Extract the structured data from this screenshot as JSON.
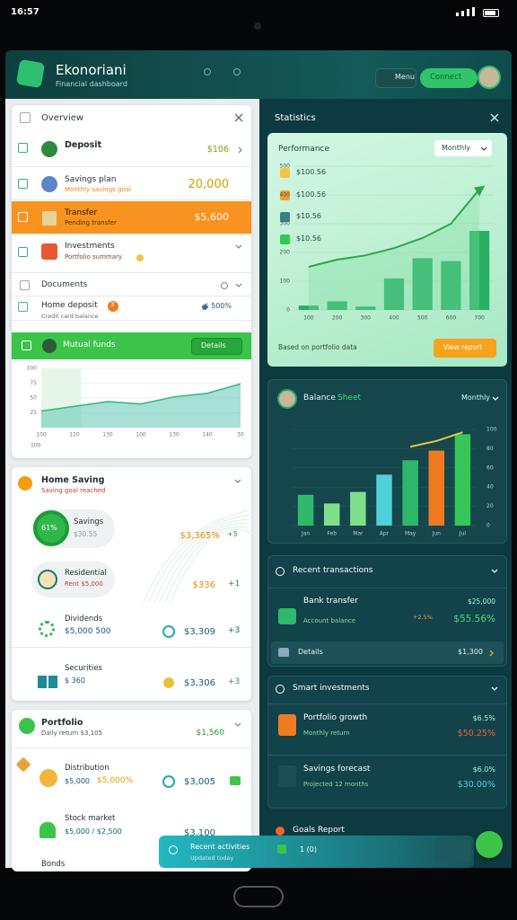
{
  "status_bar": {
    "time": "16:57"
  },
  "header": {
    "app_name": "Ekonoriani",
    "subtitle": "Financial dashboard",
    "menu_button": "Menu",
    "connect_button": "Connect"
  },
  "overview": {
    "title": "Overview",
    "items": [
      {
        "label": "Deposit",
        "value": "$106"
      },
      {
        "label": "Savings plan",
        "detail": "Monthly savings goal",
        "value": "20,000"
      },
      {
        "label": "Transfer",
        "detail": "Pending transfer",
        "value": "$5,600"
      },
      {
        "label": "Investments",
        "detail": "Portfolio summary"
      }
    ],
    "documents": "Documents",
    "home_deposit": {
      "label": "Home deposit",
      "detail": "Credit card balance",
      "badge": "3",
      "value": "$ 500%"
    },
    "funds": {
      "title": "Mutual funds",
      "button": "Details"
    },
    "trend_chart": {
      "type": "area",
      "categories": [
        "100",
        "120",
        "130",
        "100",
        "130",
        "140",
        "30"
      ],
      "color": "#5cc6b6",
      "values": [
        28,
        36,
        44,
        40,
        52,
        58,
        74
      ],
      "ylim": [
        0,
        100
      ],
      "yticks": [
        25,
        50,
        75,
        100
      ]
    }
  },
  "home_saving": {
    "title": "Home Saving",
    "detail": "Saving goal reached",
    "items": [
      {
        "badge": "61%",
        "label": "Savings",
        "detail": "$30.55",
        "value": "$3,365%",
        "tag": "+5"
      },
      {
        "label": "Residential",
        "detail": "Rent $5,000",
        "value": "$336",
        "tag": "+1"
      },
      {
        "label": "Dividends",
        "detail": "$5,000 500",
        "value": "$3,309",
        "tag": "+3"
      },
      {
        "label": "Securities",
        "detail": "$ 360",
        "value": "$3,306",
        "tag": "+3"
      }
    ]
  },
  "portfolio": {
    "title": "Portfolio",
    "detail": "Daily return $3,105",
    "value": "$1,560",
    "items": [
      {
        "label": "Distribution",
        "detail": "$5,000",
        "value": "$5,000%",
        "value2": "$3,005"
      },
      {
        "label": "Stock market",
        "detail": "$5,000 / $2,500",
        "value": "$3,100"
      }
    ],
    "more": "Bonds"
  },
  "statistics": {
    "title": "Statistics",
    "performance": {
      "title": "Performance",
      "dropdown": "Monthly",
      "legend": [
        {
          "label": "$100.56",
          "color": "#f4c542"
        },
        {
          "label": "$100.56",
          "color": "#f39c34"
        },
        {
          "label": "$10.56",
          "color": "#3d7d86"
        },
        {
          "label": "$10.56",
          "color": "#34c759"
        }
      ],
      "chart": {
        "type": "bar",
        "categories": [
          "100",
          "200",
          "300",
          "400",
          "500",
          "600",
          "700"
        ],
        "ylim": [
          0,
          500
        ],
        "yticks": [
          0,
          100,
          200,
          300,
          400,
          500
        ],
        "bars": {
          "color": "#27b064",
          "values": [
            15,
            30,
            12,
            110,
            180,
            170,
            275
          ]
        },
        "line": {
          "color": "#2aa84a",
          "values": [
            150,
            175,
            190,
            215,
            250,
            300,
            420
          ]
        }
      },
      "footer": "Based on portfolio data",
      "button": "View report"
    },
    "balance": {
      "title": "Balance",
      "highlight": "Sheet",
      "dropdown": "Monthly",
      "chart": {
        "type": "bar",
        "categories": [
          "Jan",
          "Feb",
          "Mar",
          "Apr",
          "May",
          "Jun",
          "Jul"
        ],
        "ylim": [
          0,
          100
        ],
        "yticks": [
          0,
          20,
          40,
          60,
          80,
          100
        ],
        "bars": {
          "colors": [
            "#2fb86a",
            "#7fe08a",
            "#7fe08a",
            "#4fd1d9",
            "#2fb86a",
            "#f07a22",
            "#37c65a"
          ],
          "values": [
            32,
            23,
            35,
            53,
            68,
            78,
            95
          ]
        },
        "line": {
          "color": "#e8c547",
          "values": [
            null,
            null,
            null,
            null,
            82,
            88,
            97
          ]
        }
      }
    },
    "transactions": {
      "title": "Recent transactions",
      "item": {
        "label": "Bank transfer",
        "detail": "Account balance",
        "extra": "+2.5%",
        "value_top": "$25,000",
        "value": "$55.56%"
      },
      "footer": {
        "label": "Details",
        "value": "$1,300"
      }
    },
    "investments": {
      "title": "Smart investments",
      "items": [
        {
          "label": "Portfolio growth",
          "detail": "Monthly return",
          "value_top": "$6.5%",
          "value": "$50.25%"
        },
        {
          "label": "Savings forecast",
          "detail": "Projected 12 months",
          "value_top": "$6.0%",
          "value": "$30.00%"
        }
      ]
    },
    "goals": "Goals Report"
  },
  "activity_bar": {
    "title": "Recent activities",
    "detail": "Updated today",
    "count": "1 (0)"
  }
}
